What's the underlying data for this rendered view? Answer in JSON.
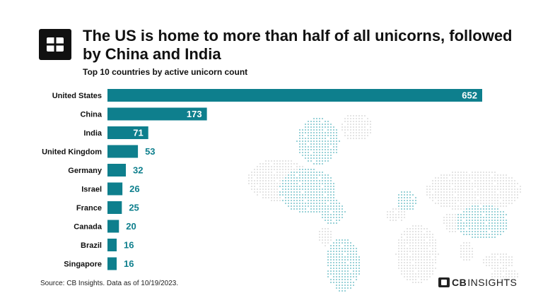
{
  "header": {
    "title": "The US is home to more than half of all unicorns, followed by China and India",
    "subtitle": "Top 10 countries by active unicorn count"
  },
  "footer": {
    "source": "Source: CB Insights. Data as of 10/19/2023.",
    "brand_cb": "CB",
    "brand_insights": "INSIGHTS"
  },
  "colors": {
    "bar": "#0e7f8d",
    "label_inside": "#ffffff",
    "label_outside": "#0e7f8d",
    "map_light": "#dcdcdc",
    "map_highlight": "#7fc6cd"
  },
  "chart_data": {
    "type": "bar",
    "orientation": "horizontal",
    "title": "Top 10 countries by active unicorn count",
    "categories": [
      "United States",
      "China",
      "India",
      "United Kingdom",
      "Germany",
      "Israel",
      "France",
      "Canada",
      "Brazil",
      "Singapore"
    ],
    "values": [
      652,
      173,
      71,
      53,
      32,
      26,
      25,
      20,
      16,
      16
    ],
    "xlabel": "",
    "ylabel": "",
    "xlim": [
      0,
      652
    ],
    "grid": false,
    "legend": "none"
  }
}
